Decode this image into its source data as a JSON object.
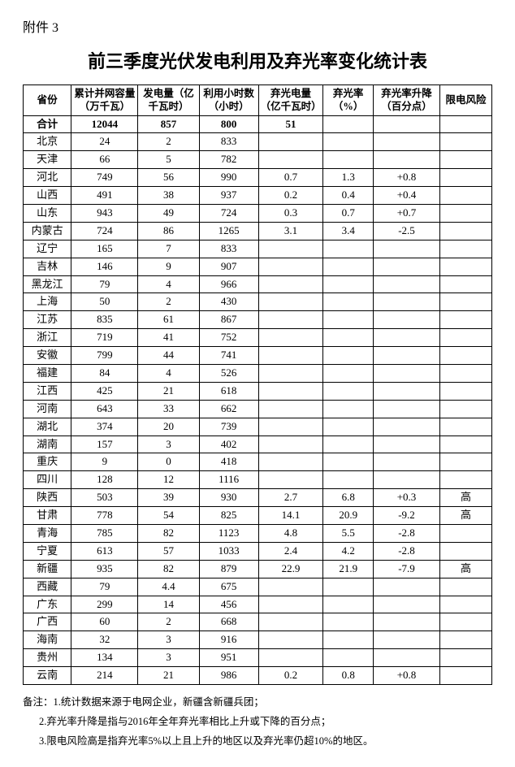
{
  "attachment_label": "附件 3",
  "title": "前三季度光伏发电利用及弃光率变化统计表",
  "columns": {
    "province": "省份",
    "capacity": "累计并网容量（万千瓦）",
    "generation": "发电量（亿千瓦时）",
    "hours": "利用小时数（小时）",
    "curtailed": "弃光电量（亿千瓦时）",
    "rate": "弃光率（%）",
    "change": "弃光率升降（百分点）",
    "risk": "限电风险"
  },
  "rows": [
    {
      "province": "合计",
      "capacity": "12044",
      "generation": "857",
      "hours": "800",
      "curtailed": "51",
      "rate": "",
      "change": "",
      "risk": "",
      "is_sum": true
    },
    {
      "province": "北京",
      "capacity": "24",
      "generation": "2",
      "hours": "833",
      "curtailed": "",
      "rate": "",
      "change": "",
      "risk": ""
    },
    {
      "province": "天津",
      "capacity": "66",
      "generation": "5",
      "hours": "782",
      "curtailed": "",
      "rate": "",
      "change": "",
      "risk": ""
    },
    {
      "province": "河北",
      "capacity": "749",
      "generation": "56",
      "hours": "990",
      "curtailed": "0.7",
      "rate": "1.3",
      "change": "+0.8",
      "risk": ""
    },
    {
      "province": "山西",
      "capacity": "491",
      "generation": "38",
      "hours": "937",
      "curtailed": "0.2",
      "rate": "0.4",
      "change": "+0.4",
      "risk": ""
    },
    {
      "province": "山东",
      "capacity": "943",
      "generation": "49",
      "hours": "724",
      "curtailed": "0.3",
      "rate": "0.7",
      "change": "+0.7",
      "risk": ""
    },
    {
      "province": "内蒙古",
      "capacity": "724",
      "generation": "86",
      "hours": "1265",
      "curtailed": "3.1",
      "rate": "3.4",
      "change": "-2.5",
      "risk": ""
    },
    {
      "province": "辽宁",
      "capacity": "165",
      "generation": "7",
      "hours": "833",
      "curtailed": "",
      "rate": "",
      "change": "",
      "risk": ""
    },
    {
      "province": "吉林",
      "capacity": "146",
      "generation": "9",
      "hours": "907",
      "curtailed": "",
      "rate": "",
      "change": "",
      "risk": ""
    },
    {
      "province": "黑龙江",
      "capacity": "79",
      "generation": "4",
      "hours": "966",
      "curtailed": "",
      "rate": "",
      "change": "",
      "risk": ""
    },
    {
      "province": "上海",
      "capacity": "50",
      "generation": "2",
      "hours": "430",
      "curtailed": "",
      "rate": "",
      "change": "",
      "risk": ""
    },
    {
      "province": "江苏",
      "capacity": "835",
      "generation": "61",
      "hours": "867",
      "curtailed": "",
      "rate": "",
      "change": "",
      "risk": ""
    },
    {
      "province": "浙江",
      "capacity": "719",
      "generation": "41",
      "hours": "752",
      "curtailed": "",
      "rate": "",
      "change": "",
      "risk": ""
    },
    {
      "province": "安徽",
      "capacity": "799",
      "generation": "44",
      "hours": "741",
      "curtailed": "",
      "rate": "",
      "change": "",
      "risk": ""
    },
    {
      "province": "福建",
      "capacity": "84",
      "generation": "4",
      "hours": "526",
      "curtailed": "",
      "rate": "",
      "change": "",
      "risk": ""
    },
    {
      "province": "江西",
      "capacity": "425",
      "generation": "21",
      "hours": "618",
      "curtailed": "",
      "rate": "",
      "change": "",
      "risk": ""
    },
    {
      "province": "河南",
      "capacity": "643",
      "generation": "33",
      "hours": "662",
      "curtailed": "",
      "rate": "",
      "change": "",
      "risk": ""
    },
    {
      "province": "湖北",
      "capacity": "374",
      "generation": "20",
      "hours": "739",
      "curtailed": "",
      "rate": "",
      "change": "",
      "risk": ""
    },
    {
      "province": "湖南",
      "capacity": "157",
      "generation": "3",
      "hours": "402",
      "curtailed": "",
      "rate": "",
      "change": "",
      "risk": ""
    },
    {
      "province": "重庆",
      "capacity": "9",
      "generation": "0",
      "hours": "418",
      "curtailed": "",
      "rate": "",
      "change": "",
      "risk": ""
    },
    {
      "province": "四川",
      "capacity": "128",
      "generation": "12",
      "hours": "1116",
      "curtailed": "",
      "rate": "",
      "change": "",
      "risk": ""
    },
    {
      "province": "陕西",
      "capacity": "503",
      "generation": "39",
      "hours": "930",
      "curtailed": "2.7",
      "rate": "6.8",
      "change": "+0.3",
      "risk": "高"
    },
    {
      "province": "甘肃",
      "capacity": "778",
      "generation": "54",
      "hours": "825",
      "curtailed": "14.1",
      "rate": "20.9",
      "change": "-9.2",
      "risk": "高"
    },
    {
      "province": "青海",
      "capacity": "785",
      "generation": "82",
      "hours": "1123",
      "curtailed": "4.8",
      "rate": "5.5",
      "change": "-2.8",
      "risk": ""
    },
    {
      "province": "宁夏",
      "capacity": "613",
      "generation": "57",
      "hours": "1033",
      "curtailed": "2.4",
      "rate": "4.2",
      "change": "-2.8",
      "risk": ""
    },
    {
      "province": "新疆",
      "capacity": "935",
      "generation": "82",
      "hours": "879",
      "curtailed": "22.9",
      "rate": "21.9",
      "change": "-7.9",
      "risk": "高"
    },
    {
      "province": "西藏",
      "capacity": "79",
      "generation": "4.4",
      "hours": "675",
      "curtailed": "",
      "rate": "",
      "change": "",
      "risk": ""
    },
    {
      "province": "广东",
      "capacity": "299",
      "generation": "14",
      "hours": "456",
      "curtailed": "",
      "rate": "",
      "change": "",
      "risk": ""
    },
    {
      "province": "广西",
      "capacity": "60",
      "generation": "2",
      "hours": "668",
      "curtailed": "",
      "rate": "",
      "change": "",
      "risk": ""
    },
    {
      "province": "海南",
      "capacity": "32",
      "generation": "3",
      "hours": "916",
      "curtailed": "",
      "rate": "",
      "change": "",
      "risk": ""
    },
    {
      "province": "贵州",
      "capacity": "134",
      "generation": "3",
      "hours": "951",
      "curtailed": "",
      "rate": "",
      "change": "",
      "risk": ""
    },
    {
      "province": "云南",
      "capacity": "214",
      "generation": "21",
      "hours": "986",
      "curtailed": "0.2",
      "rate": "0.8",
      "change": "+0.8",
      "risk": ""
    }
  ],
  "notes": {
    "intro": "备注：1.统计数据来源于电网企业，新疆含新疆兵团；",
    "n2": "2.弃光率升降是指与2016年全年弃光率相比上升或下降的百分点；",
    "n3": "3.限电风险高是指弃光率5%以上且上升的地区以及弃光率仍超10%的地区。"
  }
}
